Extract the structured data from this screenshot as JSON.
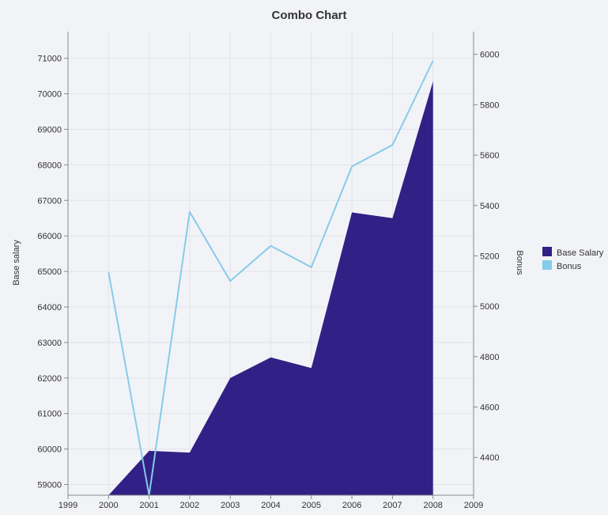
{
  "chart_data": {
    "type": "area+line",
    "title": "Combo Chart",
    "x": [
      2000,
      2001,
      2002,
      2003,
      2004,
      2005,
      2006,
      2007,
      2008
    ],
    "xlim": [
      1999,
      2009
    ],
    "x_ticks": [
      "1999",
      "2000",
      "2001",
      "2002",
      "2003",
      "2004",
      "2005",
      "2006",
      "2007",
      "2008",
      "2009"
    ],
    "series": [
      {
        "name": "Base Salary",
        "type": "area",
        "axis": "left",
        "color": "#312186",
        "values": [
          58700,
          59950,
          59900,
          62000,
          62580,
          62280,
          66660,
          66500,
          70350
        ]
      },
      {
        "name": "Bonus",
        "type": "line",
        "axis": "right",
        "color": "#87cbea",
        "values": [
          5135,
          4250,
          5375,
          5100,
          5240,
          5155,
          5555,
          5640,
          5975
        ]
      }
    ],
    "y_left": {
      "label": "Base salary",
      "ylim": [
        58700,
        71750
      ],
      "ticks": [
        "59000",
        "60000",
        "61000",
        "62000",
        "63000",
        "64000",
        "65000",
        "66000",
        "67000",
        "68000",
        "69000",
        "70000",
        "71000"
      ]
    },
    "y_right": {
      "label": "Bonus",
      "ylim": [
        4250,
        6090
      ],
      "ticks": [
        "4400",
        "4600",
        "4800",
        "5000",
        "5200",
        "5400",
        "5600",
        "5800",
        "6000"
      ]
    },
    "grid": true,
    "legend": "right"
  }
}
